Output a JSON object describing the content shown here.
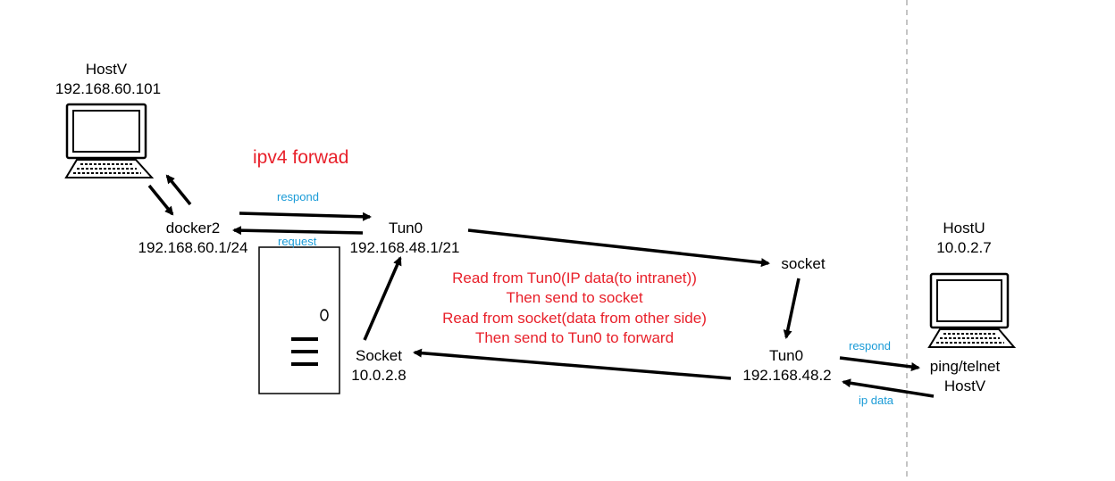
{
  "colors": {
    "line": "#000000",
    "accent_red": "#e8202a",
    "accent_blue": "#1a9bd7",
    "divider": "#b0b0b0"
  },
  "title": "ipv4 forwad",
  "nodes": {
    "host_v_left": {
      "name": "HostV",
      "ip": "192.168.60.101",
      "icon": "computer-icon"
    },
    "docker2": {
      "name": "docker2",
      "ip": "192.168.60.1/24"
    },
    "server": {
      "icon": "server-tower-icon"
    },
    "tun0_left": {
      "name": "Tun0",
      "ip": "192.168.48.1/21"
    },
    "socket_left": {
      "name": "Socket",
      "ip": "10.0.2.8"
    },
    "socket_right": {
      "name": "socket"
    },
    "tun0_right": {
      "name": "Tun0",
      "ip": "192.168.48.2"
    },
    "host_u": {
      "name": "HostU",
      "ip": "10.0.2.7",
      "icon": "computer-icon",
      "app": "ping/telnet",
      "alias": "HostV"
    }
  },
  "edge_labels": {
    "respond_left": "respond",
    "request_left": "request",
    "respond_right": "respond",
    "ip_data_right": "ip data"
  },
  "notes": [
    "Read from Tun0(IP data(to intranet))",
    "Then send to socket",
    "Read from socket(data from other side)",
    "Then send to Tun0 to forward"
  ]
}
